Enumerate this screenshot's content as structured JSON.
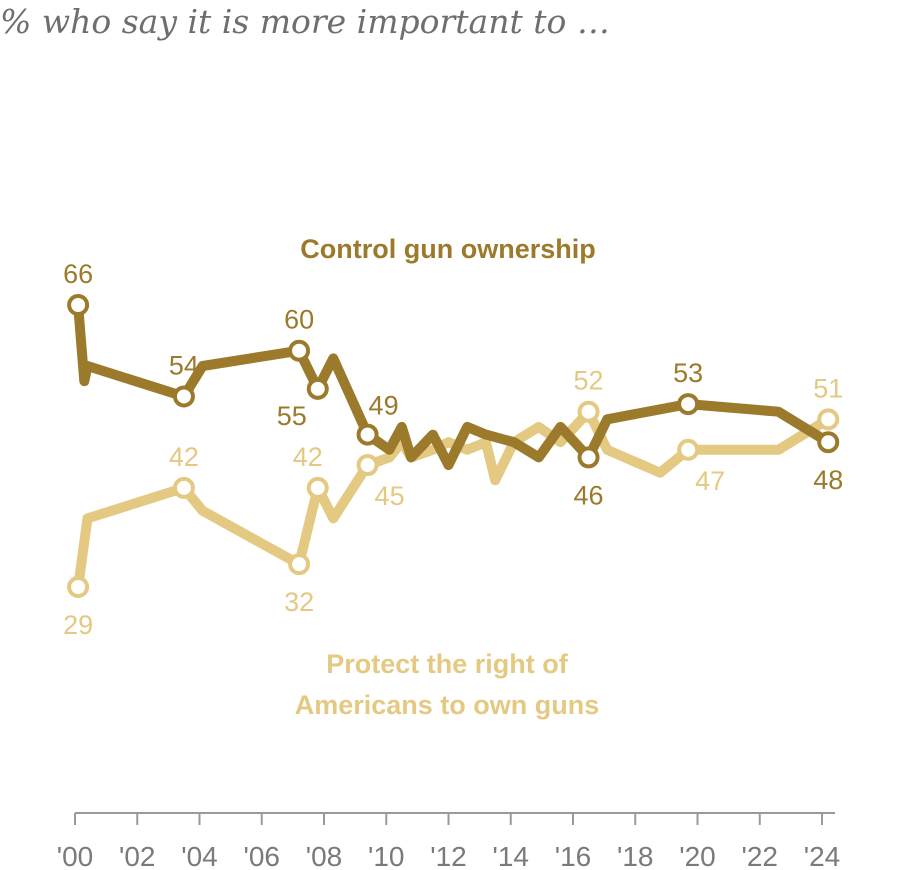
{
  "subtitle": "% who say it is more important to …",
  "colors": {
    "control": "#9b7a2c",
    "protect": "#e4c982",
    "axis": "#9a9a9a",
    "tick_text": "#7a7a7a"
  },
  "chart_data": {
    "type": "line",
    "title": "% who say it is more important to …",
    "xlabel": "",
    "ylabel": "",
    "xlim": [
      2000,
      2024.5
    ],
    "ylim": [
      20,
      75
    ],
    "x_ticks": [
      {
        "x": 2000,
        "label": "'00"
      },
      {
        "x": 2002,
        "label": "'02"
      },
      {
        "x": 2004,
        "label": "'04"
      },
      {
        "x": 2006,
        "label": "'06"
      },
      {
        "x": 2008,
        "label": "'08"
      },
      {
        "x": 2010,
        "label": "'10"
      },
      {
        "x": 2012,
        "label": "'12"
      },
      {
        "x": 2014,
        "label": "'14"
      },
      {
        "x": 2016,
        "label": "'16"
      },
      {
        "x": 2018,
        "label": "'18"
      },
      {
        "x": 2020,
        "label": "'20"
      },
      {
        "x": 2022,
        "label": "'22"
      },
      {
        "x": 2024,
        "label": "'24"
      }
    ],
    "series": [
      {
        "name": "Control gun ownership",
        "label_lines": [
          "Control gun ownership"
        ],
        "color": "#9b7a2c",
        "x": [
          2000.1,
          2000.3,
          2000.4,
          2003.5,
          2004.1,
          2007.2,
          2007.8,
          2008.3,
          2009.4,
          2010.1,
          2010.5,
          2010.8,
          2011.5,
          2012.0,
          2012.6,
          2013.2,
          2014.1,
          2014.9,
          2015.6,
          2016.5,
          2017.1,
          2019.7,
          2022.6,
          2024.2
        ],
        "values": [
          66,
          56,
          58,
          54,
          58,
          60,
          55,
          59,
          49,
          47,
          50,
          46,
          49,
          45,
          50,
          49,
          48,
          46,
          50,
          46,
          51,
          53,
          52,
          48
        ],
        "labels": [
          {
            "index": 0,
            "text": "66",
            "pos": "above"
          },
          {
            "index": 3,
            "text": "54",
            "pos": "above"
          },
          {
            "index": 5,
            "text": "60",
            "pos": "above"
          },
          {
            "index": 6,
            "text": "55",
            "pos": "below-left"
          },
          {
            "index": 8,
            "text": "49",
            "pos": "above-right"
          },
          {
            "index": 19,
            "text": "46",
            "pos": "below"
          },
          {
            "index": 21,
            "text": "53",
            "pos": "above"
          },
          {
            "index": 23,
            "text": "48",
            "pos": "below"
          }
        ]
      },
      {
        "name": "Protect the right of Americans to own guns",
        "label_lines": [
          "Protect the right of",
          "Americans to own guns"
        ],
        "color": "#e4c982",
        "x": [
          2000.1,
          2000.4,
          2003.5,
          2004.1,
          2007.2,
          2007.8,
          2008.3,
          2009.4,
          2010.1,
          2010.5,
          2010.8,
          2011.5,
          2012.0,
          2012.6,
          2013.2,
          2013.5,
          2014.1,
          2014.9,
          2015.6,
          2016.5,
          2017.1,
          2018.8,
          2019.7,
          2022.6,
          2024.2
        ],
        "values": [
          29,
          38,
          42,
          39,
          32,
          42,
          38,
          45,
          46,
          48,
          46,
          47,
          48,
          47,
          48,
          43,
          48,
          50,
          48,
          52,
          47,
          44,
          47,
          47,
          51
        ],
        "labels": [
          {
            "index": 0,
            "text": "29",
            "pos": "below"
          },
          {
            "index": 2,
            "text": "42",
            "pos": "above"
          },
          {
            "index": 4,
            "text": "32",
            "pos": "below"
          },
          {
            "index": 5,
            "text": "42",
            "pos": "above-left"
          },
          {
            "index": 7,
            "text": "45",
            "pos": "below-right"
          },
          {
            "index": 19,
            "text": "52",
            "pos": "above"
          },
          {
            "index": 22,
            "text": "47",
            "pos": "below-right"
          },
          {
            "index": 24,
            "text": "51",
            "pos": "above"
          }
        ]
      }
    ]
  }
}
